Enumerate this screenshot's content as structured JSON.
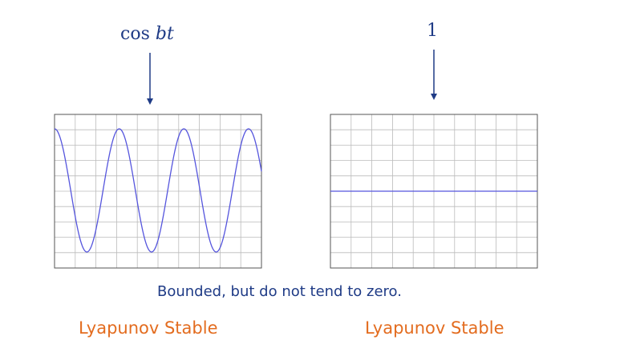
{
  "left_panel": {
    "label_prefix": "cos ",
    "label_var": "bt",
    "signal": {
      "function": "cos",
      "cycles": 3.2,
      "amplitude": 1
    },
    "trace_color": "#5555dd",
    "status": "Lyapunov Stable"
  },
  "right_panel": {
    "label": "1",
    "signal": {
      "function": "constant",
      "value": 1
    },
    "trace_color": "#5555dd",
    "status": "Lyapunov Stable"
  },
  "caption": "Bounded, but do not tend to zero.",
  "colors": {
    "label": "#1f3b86",
    "status": "#e36c1f",
    "grid": "#bbbbbb",
    "frame": "#555555"
  }
}
